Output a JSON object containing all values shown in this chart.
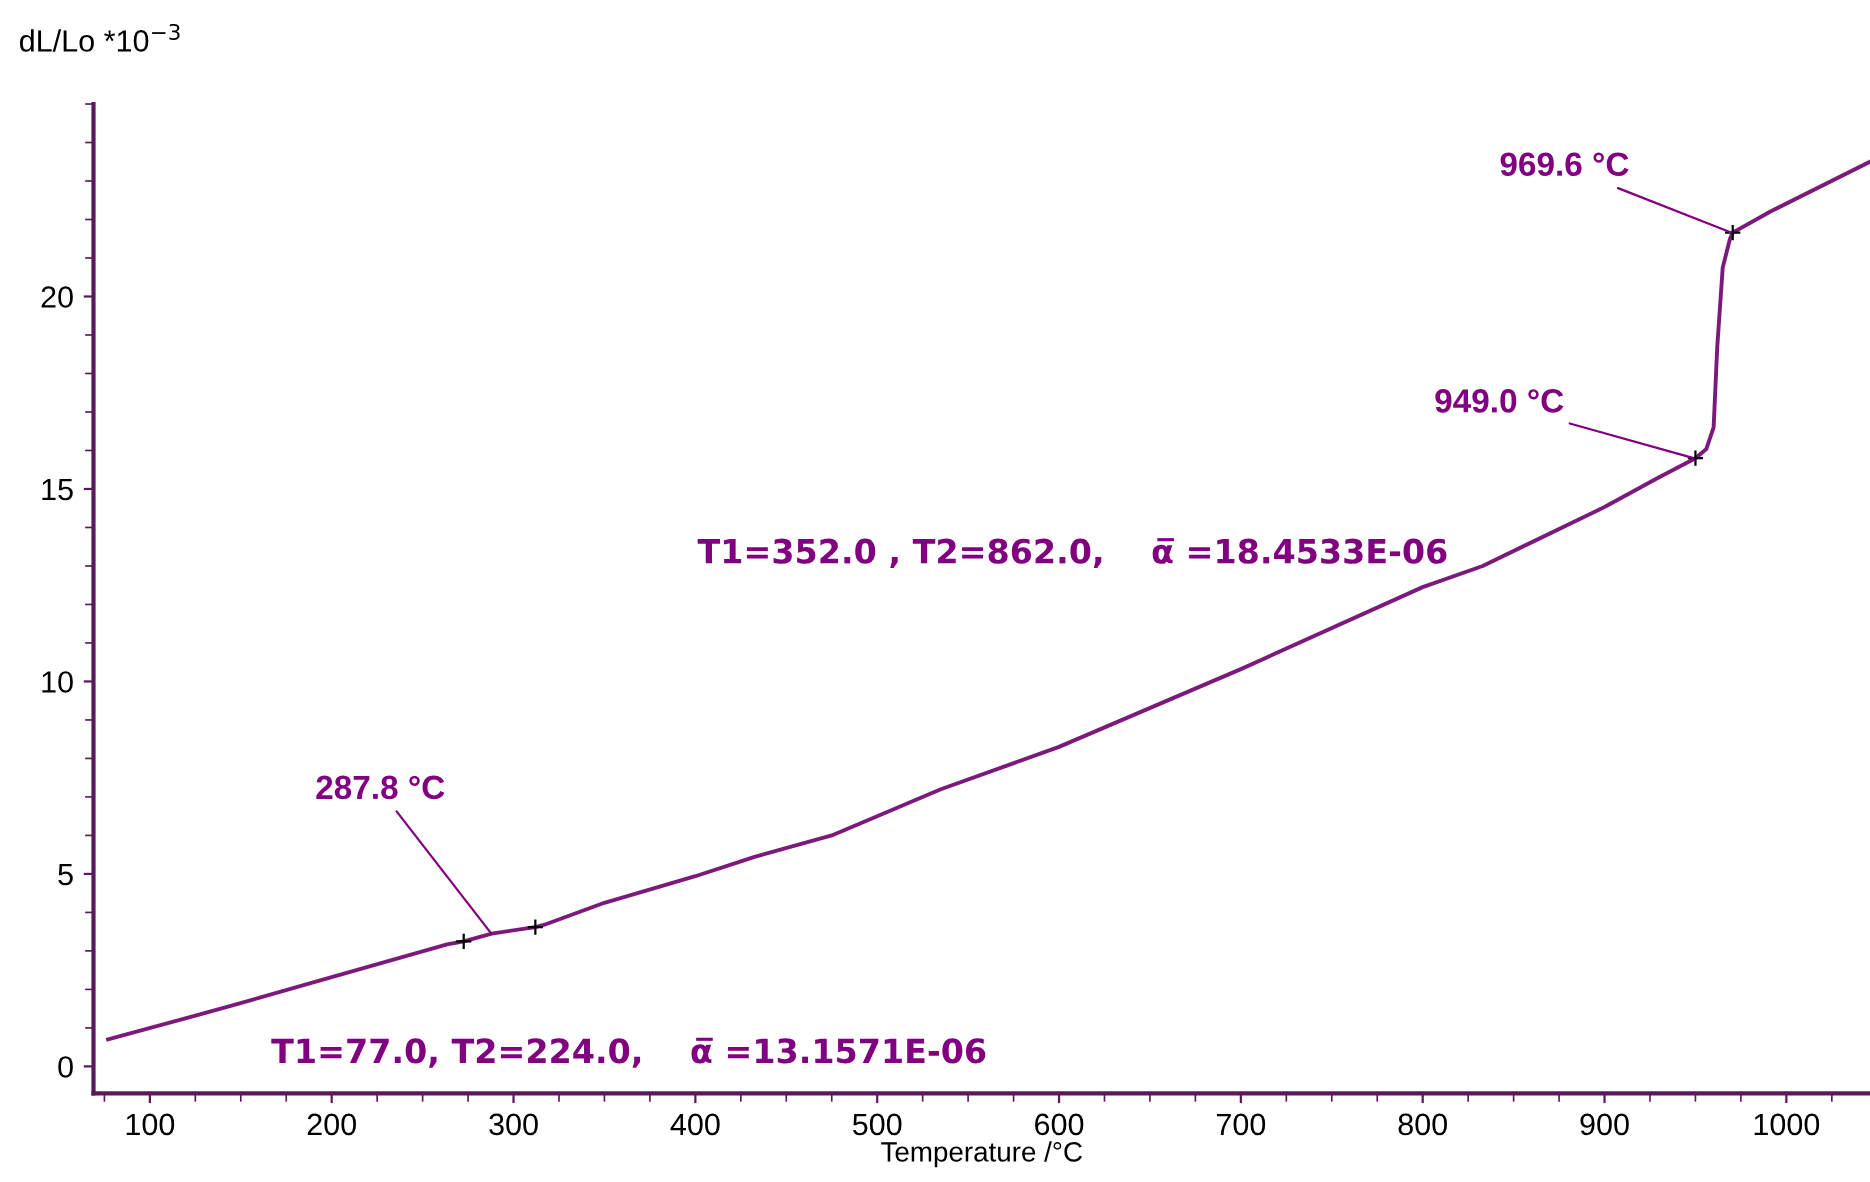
{
  "chart_data": {
    "type": "line",
    "xlabel": "Temperature /°C",
    "ylabel": "dL/Lo *10$^{−3}$",
    "xlim": [
      69,
      1046
    ],
    "ylim": [
      -0.7,
      25
    ],
    "xticks": [
      100,
      200,
      300,
      400,
      500,
      600,
      700,
      800,
      900,
      1000
    ],
    "yticks": [
      0,
      5,
      10,
      15,
      20
    ],
    "grid": false,
    "legend": false,
    "series": [
      {
        "color": "#7b1a7b",
        "marker": "none",
        "x": [
          77,
          143,
          200,
          263.5,
          272.6,
          288,
          312,
          317,
          350,
          400,
          433,
          475,
          535,
          600,
          700,
          800,
          833,
          900,
          929,
          950,
          956,
          960,
          962,
          965,
          969,
          970.5,
          991,
          1046
        ],
        "values": [
          0.7,
          1.55,
          2.32,
          3.17,
          3.25,
          3.45,
          3.62,
          3.68,
          4.25,
          4.94,
          5.45,
          6.0,
          7.2,
          8.3,
          10.32,
          12.45,
          13.0,
          14.53,
          15.28,
          15.8,
          16.04,
          16.6,
          18.7,
          20.75,
          21.5,
          21.66,
          22.2,
          23.5
        ]
      },
      {
        "type": "scatter",
        "color": "#000000",
        "marker": "cross",
        "x": [
          272.6,
          312,
          950,
          970.5
        ],
        "values": [
          3.25,
          3.62,
          15.8,
          21.66
        ]
      }
    ],
    "annotations": [
      {
        "text": "287.8 °C",
        "x": 287.8,
        "y": 3.45
      },
      {
        "text": "949.0 °C",
        "x": 949.0,
        "y": 15.8
      },
      {
        "text": "969.6 °C",
        "x": 969.6,
        "y": 21.66
      },
      "T1=77.0, T2=224.0,    α̅ =13.1571E-06",
      "T1=352.0 , T2=862.0,    α̅ =18.4533E-06"
    ]
  }
}
